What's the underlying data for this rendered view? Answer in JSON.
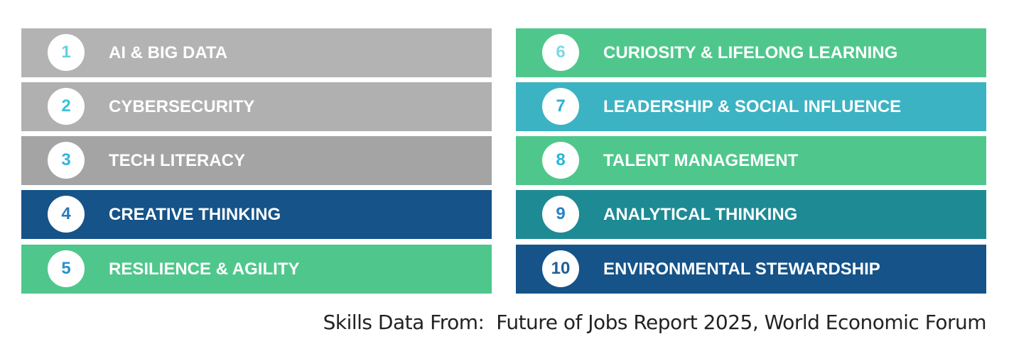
{
  "items": [
    {
      "number": 1,
      "label": "AI & BIG DATA",
      "color": "#b3b3b3",
      "number_color": "#62d0e2"
    },
    {
      "number": 2,
      "label": "CYBERSECURITY",
      "color": "#b0b0b0",
      "number_color": "#3cc2d9"
    },
    {
      "number": 3,
      "label": "TECH LITERACY",
      "color": "#a4a4a4",
      "number_color": "#33b4de"
    },
    {
      "number": 4,
      "label": "CREATIVE THINKING",
      "color": "#155388",
      "number_color": "#2a78b8"
    },
    {
      "number": 5,
      "label": "RESILIENCE & AGILITY",
      "color": "#4fc78c",
      "number_color": "#2a90d0"
    },
    {
      "number": 6,
      "label": "CURIOSITY & LIFELONG LEARNING",
      "color": "#4fc78c",
      "number_color": "#7dd8e2"
    },
    {
      "number": 7,
      "label": "LEADERSHIP & SOCIAL INFLUENCE",
      "color": "#3cb3c3",
      "number_color": "#2ab0cf"
    },
    {
      "number": 8,
      "label": "TALENT MANAGEMENT",
      "color": "#4fc78c",
      "number_color": "#2ab6d8"
    },
    {
      "number": 9,
      "label": "ANALYTICAL THINKING",
      "color": "#1e8a94",
      "number_color": "#2a82c2"
    },
    {
      "number": 10,
      "label": "ENVIRONMENTAL STEWARDSHIP",
      "color": "#155388",
      "number_color": "#1e5f95"
    }
  ],
  "source": "Skills Data From:  Future of Jobs Report 2025, World Economic Forum"
}
